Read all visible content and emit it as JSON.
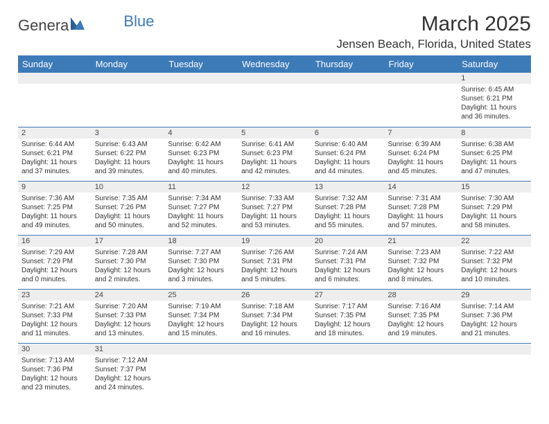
{
  "logo": {
    "text1": "Genera",
    "text2": "Blue"
  },
  "title": "March 2025",
  "location": "Jensen Beach, Florida, United States",
  "colors": {
    "header_bg": "#3d7ab8",
    "header_text": "#ffffff",
    "daybar_bg": "#eeeeee",
    "border": "#3d7ab8",
    "text": "#333333",
    "logo_blue": "#3d7ab8"
  },
  "typography": {
    "title_fontsize": 30,
    "location_fontsize": 17,
    "header_fontsize": 13,
    "daynum_fontsize": 11,
    "body_fontsize": 10
  },
  "weekdays": [
    "Sunday",
    "Monday",
    "Tuesday",
    "Wednesday",
    "Thursday",
    "Friday",
    "Saturday"
  ],
  "weeks": [
    [
      {
        "day": "",
        "sunrise": "",
        "sunset": "",
        "daylight": ""
      },
      {
        "day": "",
        "sunrise": "",
        "sunset": "",
        "daylight": ""
      },
      {
        "day": "",
        "sunrise": "",
        "sunset": "",
        "daylight": ""
      },
      {
        "day": "",
        "sunrise": "",
        "sunset": "",
        "daylight": ""
      },
      {
        "day": "",
        "sunrise": "",
        "sunset": "",
        "daylight": ""
      },
      {
        "day": "",
        "sunrise": "",
        "sunset": "",
        "daylight": ""
      },
      {
        "day": "1",
        "sunrise": "Sunrise: 6:45 AM",
        "sunset": "Sunset: 6:21 PM",
        "daylight": "Daylight: 11 hours and 36 minutes."
      }
    ],
    [
      {
        "day": "2",
        "sunrise": "Sunrise: 6:44 AM",
        "sunset": "Sunset: 6:21 PM",
        "daylight": "Daylight: 11 hours and 37 minutes."
      },
      {
        "day": "3",
        "sunrise": "Sunrise: 6:43 AM",
        "sunset": "Sunset: 6:22 PM",
        "daylight": "Daylight: 11 hours and 39 minutes."
      },
      {
        "day": "4",
        "sunrise": "Sunrise: 6:42 AM",
        "sunset": "Sunset: 6:23 PM",
        "daylight": "Daylight: 11 hours and 40 minutes."
      },
      {
        "day": "5",
        "sunrise": "Sunrise: 6:41 AM",
        "sunset": "Sunset: 6:23 PM",
        "daylight": "Daylight: 11 hours and 42 minutes."
      },
      {
        "day": "6",
        "sunrise": "Sunrise: 6:40 AM",
        "sunset": "Sunset: 6:24 PM",
        "daylight": "Daylight: 11 hours and 44 minutes."
      },
      {
        "day": "7",
        "sunrise": "Sunrise: 6:39 AM",
        "sunset": "Sunset: 6:24 PM",
        "daylight": "Daylight: 11 hours and 45 minutes."
      },
      {
        "day": "8",
        "sunrise": "Sunrise: 6:38 AM",
        "sunset": "Sunset: 6:25 PM",
        "daylight": "Daylight: 11 hours and 47 minutes."
      }
    ],
    [
      {
        "day": "9",
        "sunrise": "Sunrise: 7:36 AM",
        "sunset": "Sunset: 7:25 PM",
        "daylight": "Daylight: 11 hours and 49 minutes."
      },
      {
        "day": "10",
        "sunrise": "Sunrise: 7:35 AM",
        "sunset": "Sunset: 7:26 PM",
        "daylight": "Daylight: 11 hours and 50 minutes."
      },
      {
        "day": "11",
        "sunrise": "Sunrise: 7:34 AM",
        "sunset": "Sunset: 7:27 PM",
        "daylight": "Daylight: 11 hours and 52 minutes."
      },
      {
        "day": "12",
        "sunrise": "Sunrise: 7:33 AM",
        "sunset": "Sunset: 7:27 PM",
        "daylight": "Daylight: 11 hours and 53 minutes."
      },
      {
        "day": "13",
        "sunrise": "Sunrise: 7:32 AM",
        "sunset": "Sunset: 7:28 PM",
        "daylight": "Daylight: 11 hours and 55 minutes."
      },
      {
        "day": "14",
        "sunrise": "Sunrise: 7:31 AM",
        "sunset": "Sunset: 7:28 PM",
        "daylight": "Daylight: 11 hours and 57 minutes."
      },
      {
        "day": "15",
        "sunrise": "Sunrise: 7:30 AM",
        "sunset": "Sunset: 7:29 PM",
        "daylight": "Daylight: 11 hours and 58 minutes."
      }
    ],
    [
      {
        "day": "16",
        "sunrise": "Sunrise: 7:29 AM",
        "sunset": "Sunset: 7:29 PM",
        "daylight": "Daylight: 12 hours and 0 minutes."
      },
      {
        "day": "17",
        "sunrise": "Sunrise: 7:28 AM",
        "sunset": "Sunset: 7:30 PM",
        "daylight": "Daylight: 12 hours and 2 minutes."
      },
      {
        "day": "18",
        "sunrise": "Sunrise: 7:27 AM",
        "sunset": "Sunset: 7:30 PM",
        "daylight": "Daylight: 12 hours and 3 minutes."
      },
      {
        "day": "19",
        "sunrise": "Sunrise: 7:26 AM",
        "sunset": "Sunset: 7:31 PM",
        "daylight": "Daylight: 12 hours and 5 minutes."
      },
      {
        "day": "20",
        "sunrise": "Sunrise: 7:24 AM",
        "sunset": "Sunset: 7:31 PM",
        "daylight": "Daylight: 12 hours and 6 minutes."
      },
      {
        "day": "21",
        "sunrise": "Sunrise: 7:23 AM",
        "sunset": "Sunset: 7:32 PM",
        "daylight": "Daylight: 12 hours and 8 minutes."
      },
      {
        "day": "22",
        "sunrise": "Sunrise: 7:22 AM",
        "sunset": "Sunset: 7:32 PM",
        "daylight": "Daylight: 12 hours and 10 minutes."
      }
    ],
    [
      {
        "day": "23",
        "sunrise": "Sunrise: 7:21 AM",
        "sunset": "Sunset: 7:33 PM",
        "daylight": "Daylight: 12 hours and 11 minutes."
      },
      {
        "day": "24",
        "sunrise": "Sunrise: 7:20 AM",
        "sunset": "Sunset: 7:33 PM",
        "daylight": "Daylight: 12 hours and 13 minutes."
      },
      {
        "day": "25",
        "sunrise": "Sunrise: 7:19 AM",
        "sunset": "Sunset: 7:34 PM",
        "daylight": "Daylight: 12 hours and 15 minutes."
      },
      {
        "day": "26",
        "sunrise": "Sunrise: 7:18 AM",
        "sunset": "Sunset: 7:34 PM",
        "daylight": "Daylight: 12 hours and 16 minutes."
      },
      {
        "day": "27",
        "sunrise": "Sunrise: 7:17 AM",
        "sunset": "Sunset: 7:35 PM",
        "daylight": "Daylight: 12 hours and 18 minutes."
      },
      {
        "day": "28",
        "sunrise": "Sunrise: 7:16 AM",
        "sunset": "Sunset: 7:35 PM",
        "daylight": "Daylight: 12 hours and 19 minutes."
      },
      {
        "day": "29",
        "sunrise": "Sunrise: 7:14 AM",
        "sunset": "Sunset: 7:36 PM",
        "daylight": "Daylight: 12 hours and 21 minutes."
      }
    ],
    [
      {
        "day": "30",
        "sunrise": "Sunrise: 7:13 AM",
        "sunset": "Sunset: 7:36 PM",
        "daylight": "Daylight: 12 hours and 23 minutes."
      },
      {
        "day": "31",
        "sunrise": "Sunrise: 7:12 AM",
        "sunset": "Sunset: 7:37 PM",
        "daylight": "Daylight: 12 hours and 24 minutes."
      },
      {
        "day": "",
        "sunrise": "",
        "sunset": "",
        "daylight": ""
      },
      {
        "day": "",
        "sunrise": "",
        "sunset": "",
        "daylight": ""
      },
      {
        "day": "",
        "sunrise": "",
        "sunset": "",
        "daylight": ""
      },
      {
        "day": "",
        "sunrise": "",
        "sunset": "",
        "daylight": ""
      },
      {
        "day": "",
        "sunrise": "",
        "sunset": "",
        "daylight": ""
      }
    ]
  ]
}
